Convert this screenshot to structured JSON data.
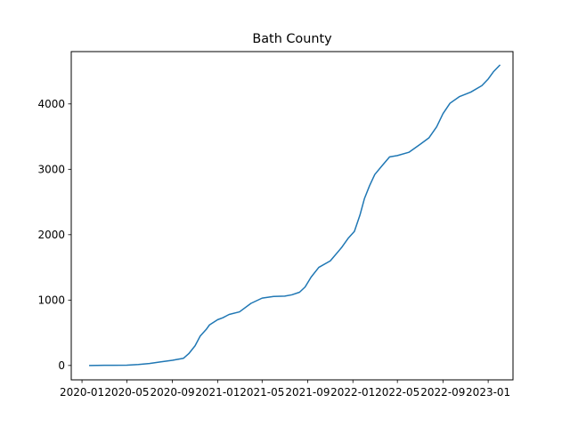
{
  "chart_data": {
    "type": "line",
    "title": "Bath County",
    "xlabel": "",
    "ylabel": "",
    "x_axis": {
      "type": "date",
      "range": [
        "2019-12-03",
        "2023-03-09"
      ],
      "ticks": [
        {
          "date": "2020-01-01",
          "label": "2020-01"
        },
        {
          "date": "2020-05-01",
          "label": "2020-05"
        },
        {
          "date": "2020-09-01",
          "label": "2020-09"
        },
        {
          "date": "2021-01-01",
          "label": "2021-01"
        },
        {
          "date": "2021-05-01",
          "label": "2021-05"
        },
        {
          "date": "2021-09-01",
          "label": "2021-09"
        },
        {
          "date": "2022-01-01",
          "label": "2022-01"
        },
        {
          "date": "2022-05-01",
          "label": "2022-05"
        },
        {
          "date": "2022-09-01",
          "label": "2022-09"
        },
        {
          "date": "2023-01-01",
          "label": "2023-01"
        }
      ]
    },
    "y_axis": {
      "range": [
        -220,
        4800
      ],
      "ticks": [
        0,
        1000,
        2000,
        3000,
        4000
      ]
    },
    "grid": false,
    "legend": "none",
    "color": "#1f77b4",
    "series": [
      {
        "x": [
          "2020-01-22",
          "2020-03-01",
          "2020-05-01",
          "2020-06-01",
          "2020-07-01",
          "2020-08-01",
          "2020-09-01",
          "2020-10-01",
          "2020-10-15",
          "2020-11-01",
          "2020-11-15",
          "2020-12-01",
          "2020-12-10",
          "2021-01-01",
          "2021-01-15",
          "2021-02-01",
          "2021-03-01",
          "2021-04-01",
          "2021-05-01",
          "2021-06-01",
          "2021-07-01",
          "2021-07-20",
          "2021-08-10",
          "2021-08-25",
          "2021-09-10",
          "2021-10-01",
          "2021-11-01",
          "2021-12-01",
          "2021-12-20",
          "2022-01-05",
          "2022-01-20",
          "2022-02-01",
          "2022-02-15",
          "2022-03-01",
          "2022-03-20",
          "2022-04-10",
          "2022-05-01",
          "2022-06-01",
          "2022-07-01",
          "2022-07-25",
          "2022-08-15",
          "2022-09-01",
          "2022-09-20",
          "2022-10-15",
          "2022-11-15",
          "2022-12-15",
          "2023-01-01",
          "2023-01-15",
          "2023-02-01"
        ],
        "y": [
          0,
          2,
          5,
          15,
          30,
          55,
          80,
          110,
          180,
          300,
          450,
          550,
          620,
          700,
          730,
          780,
          820,
          950,
          1030,
          1055,
          1060,
          1080,
          1120,
          1200,
          1350,
          1500,
          1600,
          1800,
          1950,
          2050,
          2300,
          2550,
          2750,
          2920,
          3050,
          3190,
          3210,
          3260,
          3380,
          3480,
          3650,
          3850,
          4010,
          4110,
          4180,
          4280,
          4380,
          4490,
          4590
        ]
      }
    ]
  }
}
